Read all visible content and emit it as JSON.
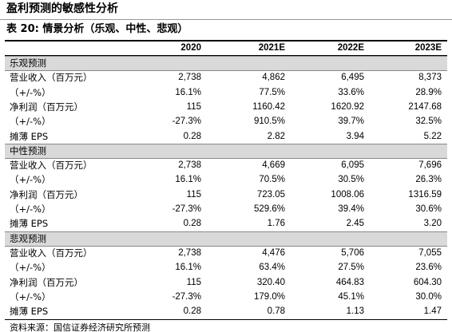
{
  "title": "盈利预测的敏感性分析",
  "table": {
    "caption": "表 20: 情景分析（乐观、中性、悲观）",
    "header": [
      "2020",
      "2021E",
      "2022E",
      "2023E"
    ],
    "sections": [
      {
        "name": "乐观预测",
        "rows": [
          [
            "营业收入（百万元）",
            "2,738",
            "4,862",
            "6,495",
            "8,373"
          ],
          [
            "（+/-%）",
            "16.1%",
            "77.5%",
            "33.6%",
            "28.9%"
          ],
          [
            "净利润（百万元）",
            "115",
            "1160.42",
            "1620.92",
            "2147.68"
          ],
          [
            "（+/-%）",
            "-27.3%",
            "910.5%",
            "39.7%",
            "32.5%"
          ],
          [
            "摊薄 EPS",
            "0.28",
            "2.82",
            "3.94",
            "5.22"
          ]
        ]
      },
      {
        "name": "中性预测",
        "rows": [
          [
            "营业收入（百万元）",
            "2,738",
            "4,669",
            "6,095",
            "7,696"
          ],
          [
            "（+/-%）",
            "16.1%",
            "70.5%",
            "30.5%",
            "26.3%"
          ],
          [
            "净利润（百万元）",
            "115",
            "723.05",
            "1008.06",
            "1316.59"
          ],
          [
            "（+/-%）",
            "-27.3%",
            "529.6%",
            "39.4%",
            "30.6%"
          ],
          [
            "摊薄 EPS",
            "0.28",
            "1.76",
            "2.45",
            "3.20"
          ]
        ]
      },
      {
        "name": "悲观预测",
        "rows": [
          [
            "营业收入（百万元）",
            "2,738",
            "4,476",
            "5,706",
            "7,055"
          ],
          [
            "（+/-%）",
            "16.1%",
            "63.4%",
            "27.5%",
            "23.6%"
          ],
          [
            "净利润（百万元）",
            "115",
            "320.40",
            "464.83",
            "604.30"
          ],
          [
            "（+/-%）",
            "-27.3%",
            "179.0%",
            "45.1%",
            "30.0%"
          ],
          [
            "摊薄 EPS",
            "0.28",
            "0.78",
            "1.13",
            "1.47"
          ]
        ]
      }
    ]
  },
  "source": "资料来源：国信证券经济研究所预测"
}
